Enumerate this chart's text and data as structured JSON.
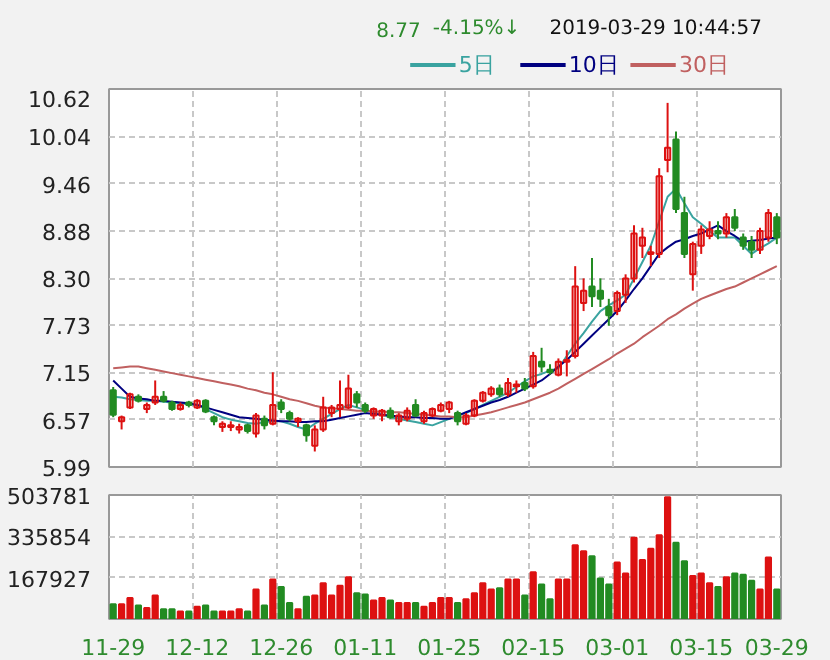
{
  "chart_data": [
    {
      "type": "candlestick",
      "annotations": [
        "8.77",
        "-4.15%↓",
        "2019-03-29 10:44:57"
      ],
      "categories": [
        null,
        null,
        null,
        null,
        null,
        null,
        null,
        null,
        null,
        null,
        null,
        null,
        null,
        null,
        null,
        null,
        null,
        null,
        null,
        null,
        null,
        null,
        null,
        null,
        null,
        null,
        null,
        null,
        null,
        null,
        null,
        null,
        null,
        null,
        null,
        null,
        null,
        null,
        null,
        null,
        null,
        null,
        null,
        null,
        null,
        null,
        null,
        null,
        null,
        null,
        null,
        null,
        null,
        null,
        null,
        null,
        null,
        null,
        null,
        null,
        null,
        null,
        null,
        null,
        null,
        null,
        null,
        null,
        null,
        null,
        null,
        null,
        null,
        null,
        null,
        null,
        null,
        null,
        null,
        null
      ],
      "ohlc": [
        [
          6.93,
          6.97,
          6.6,
          6.63
        ],
        [
          6.55,
          6.62,
          6.45,
          6.6
        ],
        [
          6.72,
          6.9,
          6.7,
          6.88
        ],
        [
          6.85,
          6.88,
          6.78,
          6.8
        ],
        [
          6.7,
          6.78,
          6.65,
          6.75
        ],
        [
          6.78,
          7.05,
          6.75,
          6.85
        ],
        [
          6.85,
          6.92,
          6.78,
          6.8
        ],
        [
          6.78,
          6.8,
          6.68,
          6.7
        ],
        [
          6.7,
          6.78,
          6.68,
          6.75
        ],
        [
          6.78,
          6.8,
          6.72,
          6.75
        ],
        [
          6.72,
          6.82,
          6.7,
          6.8
        ],
        [
          6.8,
          6.82,
          6.65,
          6.67
        ],
        [
          6.6,
          6.62,
          6.5,
          6.55
        ],
        [
          6.48,
          6.55,
          6.42,
          6.52
        ],
        [
          6.48,
          6.55,
          6.43,
          6.5
        ],
        [
          6.45,
          6.52,
          6.4,
          6.48
        ],
        [
          6.5,
          6.52,
          6.4,
          6.43
        ],
        [
          6.4,
          6.65,
          6.35,
          6.62
        ],
        [
          6.58,
          6.62,
          6.45,
          6.5
        ],
        [
          6.52,
          7.15,
          6.5,
          6.75
        ],
        [
          6.78,
          6.82,
          6.65,
          6.7
        ],
        [
          6.65,
          6.68,
          6.55,
          6.58
        ],
        [
          6.55,
          6.6,
          6.48,
          6.58
        ],
        [
          6.5,
          6.52,
          6.3,
          6.38
        ],
        [
          6.25,
          6.5,
          6.18,
          6.45
        ],
        [
          6.45,
          6.85,
          6.42,
          6.72
        ],
        [
          6.65,
          6.75,
          6.6,
          6.72
        ],
        [
          6.7,
          7.05,
          6.6,
          6.75
        ],
        [
          6.72,
          7.12,
          6.7,
          6.95
        ],
        [
          6.88,
          6.92,
          6.72,
          6.78
        ],
        [
          6.75,
          6.78,
          6.65,
          6.68
        ],
        [
          6.62,
          6.72,
          6.58,
          6.7
        ],
        [
          6.62,
          6.7,
          6.55,
          6.68
        ],
        [
          6.68,
          6.72,
          6.58,
          6.6
        ],
        [
          6.55,
          6.65,
          6.5,
          6.62
        ],
        [
          6.58,
          6.72,
          6.55,
          6.68
        ],
        [
          6.75,
          6.82,
          6.6,
          6.62
        ],
        [
          6.55,
          6.68,
          6.52,
          6.65
        ],
        [
          6.62,
          6.72,
          6.6,
          6.7
        ],
        [
          6.68,
          6.78,
          6.66,
          6.75
        ],
        [
          6.7,
          6.8,
          6.65,
          6.78
        ],
        [
          6.65,
          6.68,
          6.5,
          6.55
        ],
        [
          6.52,
          6.65,
          6.5,
          6.62
        ],
        [
          6.62,
          6.82,
          6.6,
          6.8
        ],
        [
          6.8,
          6.92,
          6.78,
          6.9
        ],
        [
          6.88,
          6.98,
          6.85,
          6.95
        ],
        [
          6.95,
          7.0,
          6.85,
          6.88
        ],
        [
          6.88,
          7.08,
          6.85,
          7.02
        ],
        [
          6.98,
          7.05,
          6.9,
          7.0
        ],
        [
          7.02,
          7.08,
          6.92,
          6.95
        ],
        [
          6.98,
          7.4,
          6.95,
          7.35
        ],
        [
          7.28,
          7.45,
          7.15,
          7.22
        ],
        [
          7.18,
          7.25,
          7.12,
          7.15
        ],
        [
          7.12,
          7.32,
          7.1,
          7.28
        ],
        [
          7.28,
          7.42,
          7.1,
          7.3
        ],
        [
          7.35,
          8.45,
          7.32,
          8.2
        ],
        [
          8.0,
          8.3,
          7.9,
          8.15
        ],
        [
          8.2,
          8.55,
          7.95,
          8.08
        ],
        [
          8.15,
          8.3,
          7.95,
          8.05
        ],
        [
          7.95,
          8.05,
          7.72,
          7.85
        ],
        [
          7.9,
          8.15,
          7.85,
          8.12
        ],
        [
          8.1,
          8.35,
          8.0,
          8.3
        ],
        [
          8.3,
          8.95,
          8.25,
          8.85
        ],
        [
          8.7,
          8.92,
          8.55,
          8.8
        ],
        [
          8.6,
          8.7,
          8.45,
          8.62
        ],
        [
          8.6,
          9.65,
          8.55,
          9.55
        ],
        [
          9.75,
          10.45,
          9.6,
          9.9
        ],
        [
          10.0,
          10.1,
          9.1,
          9.15
        ],
        [
          9.1,
          9.3,
          8.55,
          8.6
        ],
        [
          8.35,
          8.75,
          8.15,
          8.72
        ],
        [
          8.7,
          8.95,
          8.6,
          8.9
        ],
        [
          8.82,
          9.0,
          8.78,
          8.9
        ],
        [
          8.88,
          9.0,
          8.78,
          8.85
        ],
        [
          8.85,
          9.1,
          8.8,
          9.05
        ],
        [
          9.05,
          9.15,
          8.88,
          8.92
        ],
        [
          8.8,
          8.85,
          8.65,
          8.7
        ],
        [
          8.75,
          8.82,
          8.55,
          8.65
        ],
        [
          8.65,
          8.92,
          8.6,
          8.88
        ],
        [
          8.8,
          9.15,
          8.75,
          9.1
        ],
        [
          9.05,
          9.1,
          8.72,
          8.8
        ]
      ],
      "colors": [
        "#228b22",
        "#dd1111",
        "#dd1111",
        "#228b22",
        "#dd1111",
        "#dd1111",
        "#228b22",
        "#228b22",
        "#dd1111",
        "#228b22",
        "#dd1111",
        "#228b22",
        "#228b22",
        "#dd1111",
        "#dd1111",
        "#dd1111",
        "#228b22",
        "#dd1111",
        "#228b22",
        "#dd1111",
        "#228b22",
        "#228b22",
        "#dd1111",
        "#228b22",
        "#dd1111",
        "#dd1111",
        "#dd1111",
        "#dd1111",
        "#dd1111",
        "#228b22",
        "#228b22",
        "#dd1111",
        "#dd1111",
        "#228b22",
        "#dd1111",
        "#dd1111",
        "#228b22",
        "#dd1111",
        "#dd1111",
        "#dd1111",
        "#dd1111",
        "#228b22",
        "#dd1111",
        "#dd1111",
        "#dd1111",
        "#dd1111",
        "#228b22",
        "#dd1111",
        "#dd1111",
        "#228b22",
        "#dd1111",
        "#228b22",
        "#228b22",
        "#dd1111",
        "#dd1111",
        "#dd1111",
        "#dd1111",
        "#228b22",
        "#228b22",
        "#228b22",
        "#dd1111",
        "#dd1111",
        "#dd1111",
        "#dd1111",
        "#dd1111",
        "#dd1111",
        "#dd1111",
        "#228b22",
        "#228b22",
        "#dd1111",
        "#dd1111",
        "#dd1111",
        "#228b22",
        "#dd1111",
        "#228b22",
        "#228b22",
        "#228b22",
        "#dd1111",
        "#dd1111",
        "#228b22"
      ],
      "series": [
        {
          "type": "line",
          "name": "5日",
          "color": "#3aa3a0",
          "values": [
            6.85,
            6.84,
            6.82,
            6.81,
            6.8,
            6.8,
            6.79,
            6.78,
            6.77,
            6.76,
            6.75,
            6.7,
            6.65,
            6.6,
            6.57,
            6.55,
            6.53,
            6.52,
            6.54,
            6.55,
            6.55,
            6.52,
            6.48,
            6.45,
            6.52,
            6.58,
            6.64,
            6.7,
            6.75,
            6.72,
            6.69,
            6.66,
            6.63,
            6.6,
            6.58,
            6.56,
            6.54,
            6.52,
            6.5,
            6.54,
            6.58,
            6.62,
            6.65,
            6.7,
            6.75,
            6.8,
            6.85,
            6.9,
            6.97,
            7.04,
            7.1,
            7.13,
            7.17,
            7.2,
            7.35,
            7.5,
            7.63,
            7.77,
            7.9,
            7.97,
            8.03,
            8.1,
            8.3,
            8.5,
            8.7,
            9.0,
            9.3,
            9.4,
            9.22,
            9.05,
            8.97,
            8.88,
            8.8,
            8.8,
            8.8,
            8.7,
            8.6,
            8.67,
            8.73,
            8.8
          ]
        },
        {
          "type": "line",
          "name": "10日",
          "color": "#000080",
          "values": [
            7.05,
            6.95,
            6.85,
            6.83,
            6.82,
            6.8,
            6.8,
            6.79,
            6.78,
            6.77,
            6.75,
            6.72,
            6.69,
            6.66,
            6.63,
            6.6,
            6.59,
            6.58,
            6.57,
            6.56,
            6.55,
            6.55,
            6.54,
            6.54,
            6.55,
            6.55,
            6.57,
            6.59,
            6.61,
            6.63,
            6.65,
            6.64,
            6.63,
            6.62,
            6.61,
            6.6,
            6.6,
            6.59,
            6.59,
            6.58,
            6.58,
            6.62,
            6.66,
            6.7,
            6.74,
            6.78,
            6.81,
            6.85,
            6.9,
            6.95,
            7.0,
            7.05,
            7.13,
            7.22,
            7.3,
            7.4,
            7.5,
            7.6,
            7.7,
            7.8,
            7.9,
            8.03,
            8.17,
            8.3,
            8.45,
            8.6,
            8.68,
            8.75,
            8.78,
            8.82,
            8.85,
            8.9,
            8.95,
            8.88,
            8.82,
            8.75,
            8.76,
            8.77,
            8.79,
            8.8
          ]
        },
        {
          "type": "line",
          "name": "30日",
          "color": "#c06060",
          "values": [
            7.2,
            7.21,
            7.22,
            7.22,
            7.2,
            7.18,
            7.16,
            7.14,
            7.12,
            7.1,
            7.08,
            7.06,
            7.04,
            7.02,
            7.0,
            6.98,
            6.95,
            6.93,
            6.9,
            6.88,
            6.85,
            6.82,
            6.8,
            6.77,
            6.74,
            6.72,
            6.71,
            6.7,
            6.69,
            6.68,
            6.68,
            6.67,
            6.67,
            6.66,
            6.66,
            6.65,
            6.64,
            6.63,
            6.62,
            6.61,
            6.61,
            6.6,
            6.6,
            6.62,
            6.64,
            6.66,
            6.69,
            6.72,
            6.75,
            6.78,
            6.82,
            6.86,
            6.9,
            6.95,
            7.01,
            7.07,
            7.13,
            7.19,
            7.25,
            7.31,
            7.38,
            7.44,
            7.5,
            7.58,
            7.65,
            7.72,
            7.8,
            7.86,
            7.93,
            7.99,
            8.05,
            8.09,
            8.13,
            8.17,
            8.2,
            8.25,
            8.3,
            8.35,
            8.4,
            8.45
          ]
        }
      ],
      "ylim": [
        5.99,
        10.62
      ],
      "yticks": [
        5.99,
        6.57,
        7.15,
        7.73,
        {
          "value": 8.3,
          "label": "8.30"
        },
        8.88,
        9.46,
        10.04,
        10.62
      ],
      "tick_labels": "y",
      "grid": true,
      "legend": "top right"
    },
    {
      "type": "bar",
      "categories": [
        "11-29",
        null,
        null,
        null,
        null,
        null,
        null,
        null,
        null,
        null,
        "12-12",
        null,
        null,
        null,
        null,
        null,
        null,
        null,
        null,
        null,
        "12-26",
        null,
        null,
        null,
        null,
        null,
        null,
        null,
        null,
        null,
        "01-11",
        null,
        null,
        null,
        null,
        null,
        null,
        null,
        null,
        null,
        "01-25",
        null,
        null,
        null,
        null,
        null,
        null,
        null,
        null,
        null,
        "02-15",
        null,
        null,
        null,
        null,
        null,
        null,
        null,
        null,
        null,
        "03-01",
        null,
        null,
        null,
        null,
        null,
        null,
        null,
        null,
        null,
        "03-15",
        null,
        null,
        null,
        null,
        null,
        null,
        null,
        null,
        "03-29"
      ],
      "values": [
        60000,
        60000,
        85000,
        55000,
        45000,
        95000,
        40000,
        40000,
        30000,
        30000,
        50000,
        55000,
        30000,
        30000,
        30000,
        40000,
        30000,
        120000,
        55000,
        160000,
        130000,
        65000,
        40000,
        90000,
        95000,
        145000,
        95000,
        135000,
        170000,
        105000,
        100000,
        75000,
        85000,
        75000,
        65000,
        65000,
        65000,
        50000,
        65000,
        85000,
        85000,
        65000,
        80000,
        105000,
        145000,
        120000,
        125000,
        160000,
        160000,
        95000,
        190000,
        140000,
        80000,
        160000,
        160000,
        300000,
        275000,
        255000,
        165000,
        140000,
        230000,
        185000,
        330000,
        240000,
        285000,
        340000,
        495000,
        310000,
        235000,
        175000,
        185000,
        145000,
        130000,
        170000,
        185000,
        180000,
        155000,
        120000,
        250000,
        120000
      ],
      "colors": [
        "#228b22",
        "#dd1111",
        "#dd1111",
        "#228b22",
        "#dd1111",
        "#dd1111",
        "#228b22",
        "#228b22",
        "#dd1111",
        "#228b22",
        "#dd1111",
        "#228b22",
        "#228b22",
        "#dd1111",
        "#dd1111",
        "#dd1111",
        "#228b22",
        "#dd1111",
        "#228b22",
        "#dd1111",
        "#228b22",
        "#228b22",
        "#dd1111",
        "#228b22",
        "#dd1111",
        "#dd1111",
        "#dd1111",
        "#dd1111",
        "#dd1111",
        "#228b22",
        "#228b22",
        "#dd1111",
        "#dd1111",
        "#228b22",
        "#dd1111",
        "#dd1111",
        "#228b22",
        "#dd1111",
        "#dd1111",
        "#dd1111",
        "#dd1111",
        "#228b22",
        "#dd1111",
        "#dd1111",
        "#dd1111",
        "#dd1111",
        "#228b22",
        "#dd1111",
        "#dd1111",
        "#228b22",
        "#dd1111",
        "#228b22",
        "#228b22",
        "#dd1111",
        "#dd1111",
        "#dd1111",
        "#dd1111",
        "#228b22",
        "#228b22",
        "#228b22",
        "#dd1111",
        "#dd1111",
        "#dd1111",
        "#dd1111",
        "#dd1111",
        "#dd1111",
        "#dd1111",
        "#228b22",
        "#228b22",
        "#dd1111",
        "#dd1111",
        "#dd1111",
        "#228b22",
        "#dd1111",
        "#228b22",
        "#228b22",
        "#228b22",
        "#dd1111",
        "#dd1111",
        "#228b22"
      ],
      "ylim": [
        0,
        503781
      ],
      "yticks": [
        167927,
        335854,
        503781
      ],
      "grid": true
    }
  ]
}
